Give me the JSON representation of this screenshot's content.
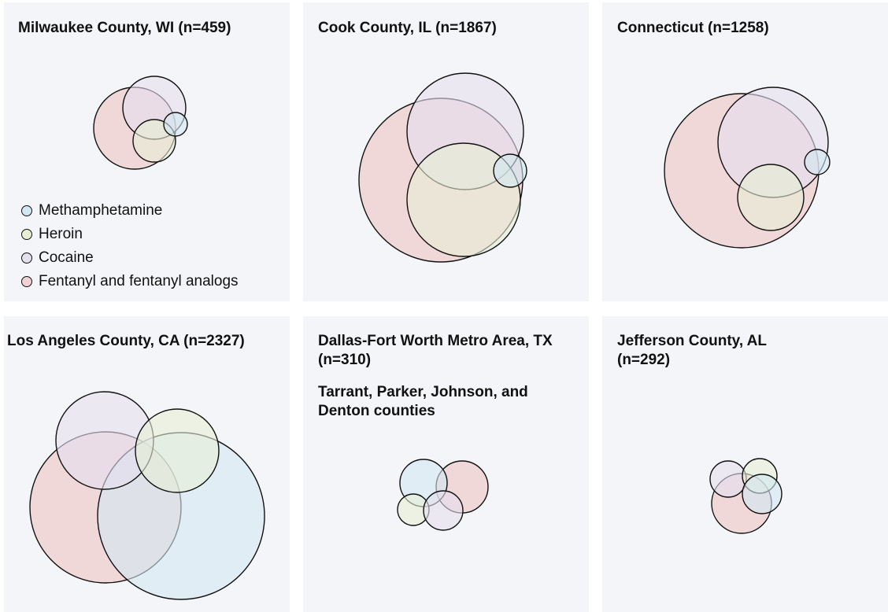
{
  "colors": {
    "methamphetamine": "#d2e7f1",
    "heroin": "#e6eed5",
    "cocaine": "#e5e0ee",
    "fentanyl": "#efd2d3",
    "panel_bg": "#f4f5f8"
  },
  "legend": {
    "items": [
      {
        "label": "Methamphetamine",
        "color_key": "methamphetamine"
      },
      {
        "label": "Heroin",
        "color_key": "heroin"
      },
      {
        "label": "Cocaine",
        "color_key": "cocaine"
      },
      {
        "label": "Fentanyl and fentanyl analogs",
        "color_key": "fentanyl"
      }
    ]
  },
  "panels": [
    {
      "title": "Milwaukee County, WI (n=459)",
      "subtitle": ""
    },
    {
      "title": "Cook County, IL (n=1867)",
      "subtitle": ""
    },
    {
      "title": "Connecticut (n=1258)",
      "subtitle": ""
    },
    {
      "title": "Los Angeles County, CA (n=2327)",
      "subtitle": ""
    },
    {
      "title": "Dallas-Fort Worth Metro Area, TX (n=310)",
      "subtitle": "Tarrant, Parker, Johnson, and Denton counties"
    },
    {
      "title": "Jefferson County, AL (n=292)",
      "subtitle": ""
    }
  ]
}
